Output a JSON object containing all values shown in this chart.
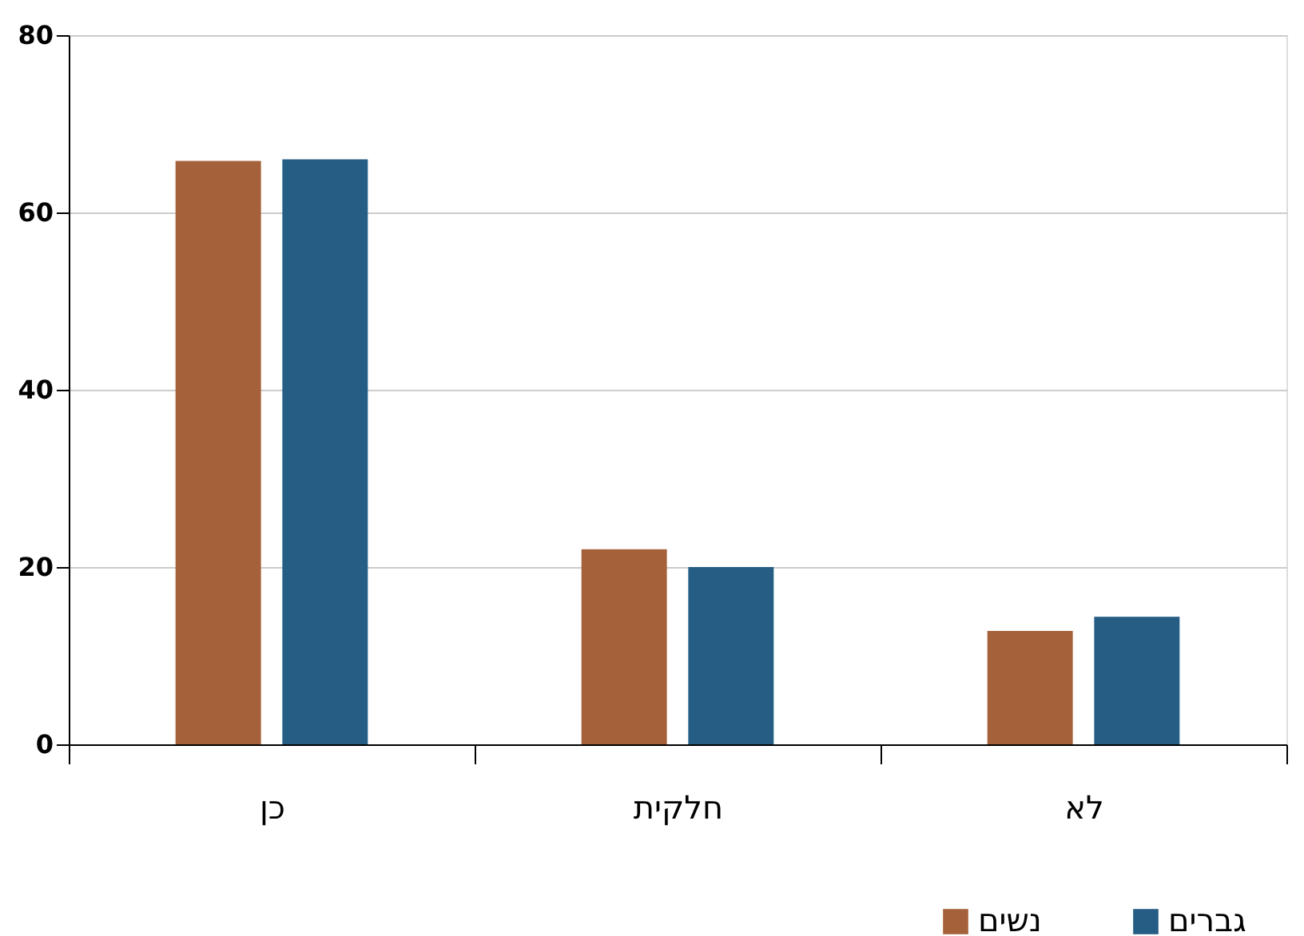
{
  "chart_data": {
    "type": "bar",
    "categories": [
      "כן",
      "חלקית",
      "לא"
    ],
    "series": [
      {
        "name": "נשים",
        "color": "#a5623a",
        "values": [
          65.8,
          22,
          12.8
        ]
      },
      {
        "name": "גברים",
        "color": "#255d85",
        "values": [
          66,
          20,
          14.4
        ]
      }
    ],
    "ylim": [
      0,
      80
    ],
    "yticks": [
      0,
      20,
      40,
      60,
      80
    ],
    "grid": "y",
    "legend": "bottom right"
  }
}
